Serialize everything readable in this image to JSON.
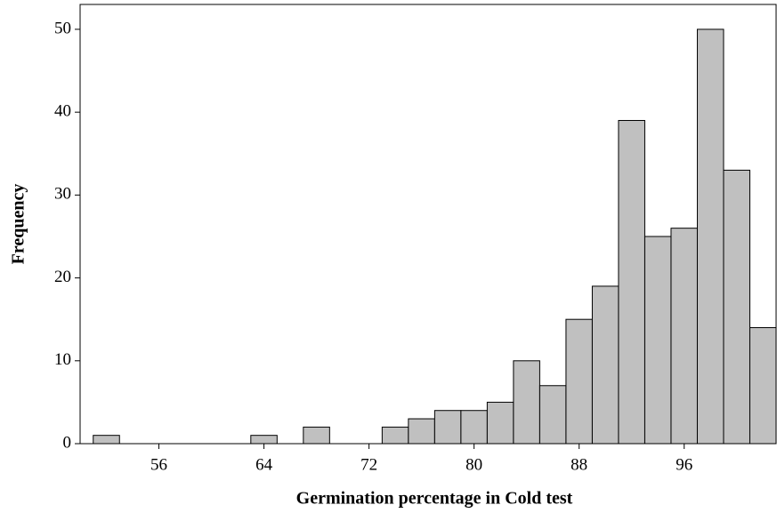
{
  "chart_data": {
    "type": "histogram",
    "x_label": "Germination percentage in Cold test",
    "y_label": "Frequency",
    "bins": [
      51,
      53,
      55,
      57,
      59,
      61,
      63,
      65,
      67,
      69,
      71,
      73,
      75,
      77,
      79,
      81,
      83,
      85,
      87,
      89,
      91,
      93,
      95,
      97,
      99,
      101,
      103
    ],
    "values": [
      1,
      0,
      0,
      0,
      0,
      0,
      1,
      0,
      2,
      0,
      0,
      2,
      3,
      4,
      4,
      5,
      10,
      7,
      15,
      19,
      39,
      25,
      26,
      50,
      33,
      14
    ],
    "color": "#c0c0c0",
    "xlim": [
      50,
      103
    ],
    "xticks": [
      56,
      64,
      72,
      80,
      88,
      96
    ],
    "ylim": [
      0,
      53
    ],
    "yticks": [
      0,
      10,
      20,
      30,
      40,
      50
    ]
  }
}
